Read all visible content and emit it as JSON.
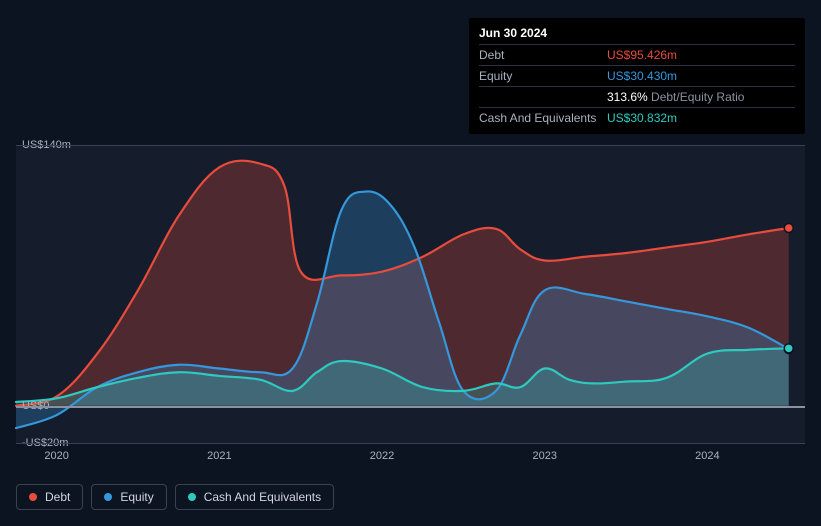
{
  "chart": {
    "type": "area",
    "background_color": "#0d1421",
    "plot_background_color": "#151c2c",
    "grid_color": "#3a4252",
    "zero_line_color": "#8a92a1",
    "axis_label_color": "#a8b2c1",
    "legend_text_color": "#d0d6e0",
    "font_family": "Arial, sans-serif",
    "axis_fontsize": 11,
    "legend_fontsize": 12,
    "ylim": [
      -20,
      140
    ],
    "y_ticks": [
      {
        "v": 140,
        "label": "US$140m"
      },
      {
        "v": 0,
        "label": "US$0"
      },
      {
        "v": -20,
        "label": "-US$20m"
      }
    ],
    "xlim": [
      2019.75,
      2024.6
    ],
    "x_ticks": [
      {
        "v": 2020,
        "label": "2020"
      },
      {
        "v": 2021,
        "label": "2021"
      },
      {
        "v": 2022,
        "label": "2022"
      },
      {
        "v": 2023,
        "label": "2023"
      },
      {
        "v": 2024,
        "label": "2024"
      }
    ],
    "line_width": 2.2,
    "series": {
      "debt": {
        "label": "Debt",
        "color": "#e74c3c",
        "fill_color": "#e74c3c",
        "fill_opacity": 0.28,
        "points": [
          {
            "x": 2019.75,
            "y": 0
          },
          {
            "x": 2020.0,
            "y": 5
          },
          {
            "x": 2020.25,
            "y": 28
          },
          {
            "x": 2020.5,
            "y": 62
          },
          {
            "x": 2020.75,
            "y": 102
          },
          {
            "x": 2021.0,
            "y": 128
          },
          {
            "x": 2021.25,
            "y": 130
          },
          {
            "x": 2021.4,
            "y": 118
          },
          {
            "x": 2021.5,
            "y": 72
          },
          {
            "x": 2021.75,
            "y": 70
          },
          {
            "x": 2022.0,
            "y": 72
          },
          {
            "x": 2022.25,
            "y": 80
          },
          {
            "x": 2022.5,
            "y": 92
          },
          {
            "x": 2022.7,
            "y": 95
          },
          {
            "x": 2022.85,
            "y": 84
          },
          {
            "x": 2023.0,
            "y": 78
          },
          {
            "x": 2023.25,
            "y": 80
          },
          {
            "x": 2023.5,
            "y": 82
          },
          {
            "x": 2023.75,
            "y": 85
          },
          {
            "x": 2024.0,
            "y": 88
          },
          {
            "x": 2024.25,
            "y": 92
          },
          {
            "x": 2024.5,
            "y": 95.426
          }
        ]
      },
      "equity": {
        "label": "Equity",
        "color": "#3498db",
        "fill_color": "#3498db",
        "fill_opacity": 0.28,
        "points": [
          {
            "x": 2019.75,
            "y": -12
          },
          {
            "x": 2020.0,
            "y": -5
          },
          {
            "x": 2020.25,
            "y": 10
          },
          {
            "x": 2020.5,
            "y": 18
          },
          {
            "x": 2020.75,
            "y": 22
          },
          {
            "x": 2021.0,
            "y": 20
          },
          {
            "x": 2021.25,
            "y": 18
          },
          {
            "x": 2021.45,
            "y": 20
          },
          {
            "x": 2021.6,
            "y": 55
          },
          {
            "x": 2021.75,
            "y": 105
          },
          {
            "x": 2021.9,
            "y": 115
          },
          {
            "x": 2022.05,
            "y": 108
          },
          {
            "x": 2022.2,
            "y": 85
          },
          {
            "x": 2022.35,
            "y": 45
          },
          {
            "x": 2022.5,
            "y": 8
          },
          {
            "x": 2022.7,
            "y": 8
          },
          {
            "x": 2022.85,
            "y": 38
          },
          {
            "x": 2023.0,
            "y": 62
          },
          {
            "x": 2023.25,
            "y": 60
          },
          {
            "x": 2023.5,
            "y": 56
          },
          {
            "x": 2023.75,
            "y": 52
          },
          {
            "x": 2024.0,
            "y": 48
          },
          {
            "x": 2024.25,
            "y": 42
          },
          {
            "x": 2024.5,
            "y": 30.43
          }
        ]
      },
      "cash": {
        "label": "Cash And Equivalents",
        "color": "#2ecac0",
        "fill_color": "#2ecac0",
        "fill_opacity": 0.25,
        "points": [
          {
            "x": 2019.75,
            "y": 2
          },
          {
            "x": 2020.0,
            "y": 4
          },
          {
            "x": 2020.25,
            "y": 10
          },
          {
            "x": 2020.5,
            "y": 15
          },
          {
            "x": 2020.75,
            "y": 18
          },
          {
            "x": 2021.0,
            "y": 16
          },
          {
            "x": 2021.25,
            "y": 14
          },
          {
            "x": 2021.45,
            "y": 8
          },
          {
            "x": 2021.6,
            "y": 18
          },
          {
            "x": 2021.75,
            "y": 24
          },
          {
            "x": 2022.0,
            "y": 20
          },
          {
            "x": 2022.25,
            "y": 10
          },
          {
            "x": 2022.5,
            "y": 8
          },
          {
            "x": 2022.7,
            "y": 12
          },
          {
            "x": 2022.85,
            "y": 10
          },
          {
            "x": 2023.0,
            "y": 20
          },
          {
            "x": 2023.15,
            "y": 14
          },
          {
            "x": 2023.3,
            "y": 12
          },
          {
            "x": 2023.5,
            "y": 13
          },
          {
            "x": 2023.75,
            "y": 15
          },
          {
            "x": 2024.0,
            "y": 28
          },
          {
            "x": 2024.25,
            "y": 30
          },
          {
            "x": 2024.5,
            "y": 30.832
          }
        ]
      }
    },
    "legend_order": [
      "debt",
      "equity",
      "cash"
    ]
  },
  "tooltip": {
    "date": "Jun 30 2024",
    "rows": [
      {
        "label": "Debt",
        "value": "US$95.426m",
        "color": "#e74c3c"
      },
      {
        "label": "Equity",
        "value": "US$30.430m",
        "color": "#3498db"
      },
      {
        "label": "",
        "value": "313.6%",
        "suffix": " Debt/Equity Ratio",
        "color": "#ffffff"
      },
      {
        "label": "Cash And Equivalents",
        "value": "US$30.832m",
        "color": "#2ecac0"
      }
    ]
  }
}
